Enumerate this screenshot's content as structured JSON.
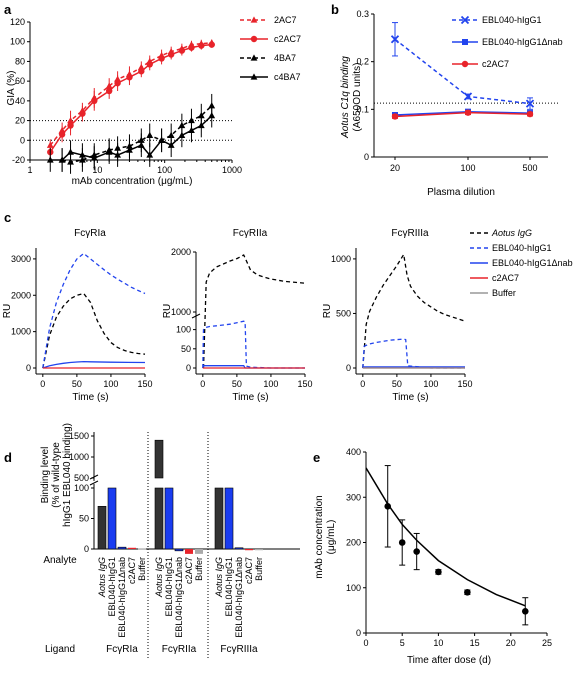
{
  "chart_data": [
    {
      "panel": "a",
      "type": "line",
      "xlabel": "mAb concentration (μg/mL)",
      "ylabel": "GIA (%)",
      "xscale": "log",
      "xlim": [
        1,
        1000
      ],
      "ylim": [
        -20,
        120
      ],
      "xticks": [
        "1",
        "10",
        "100",
        "1000"
      ],
      "yticks": [
        "-20",
        "0",
        "20",
        "40",
        "60",
        "80",
        "100",
        "120"
      ],
      "legend": "right",
      "reference_lines": [
        20,
        0
      ],
      "series": [
        {
          "name": "2AC7",
          "color": "#e8232a",
          "style": "dashed",
          "marker": "triangle",
          "x": [
            2,
            3,
            4,
            6,
            9,
            15,
            20,
            30,
            45,
            60,
            90,
            125,
            180,
            250,
            350,
            500
          ],
          "y": [
            -5,
            10,
            20,
            30,
            43,
            55,
            62,
            67,
            74,
            80,
            86,
            90,
            93,
            97,
            98,
            99
          ]
        },
        {
          "name": "c2AC7",
          "color": "#e8232a",
          "style": "solid",
          "marker": "circle",
          "x": [
            2,
            3,
            4,
            6,
            9,
            15,
            20,
            30,
            45,
            60,
            90,
            125,
            180,
            250,
            350,
            500
          ],
          "y": [
            -12,
            6,
            15,
            27,
            40,
            50,
            58,
            64,
            70,
            77,
            83,
            87,
            91,
            94,
            96,
            97
          ]
        },
        {
          "name": "4BA7",
          "color": "#000000",
          "style": "dashed",
          "marker": "triangle",
          "x": [
            3,
            4,
            6,
            9,
            15,
            20,
            30,
            45,
            60,
            90,
            125,
            180,
            250,
            350,
            500
          ],
          "y": [
            -20,
            -22,
            -20,
            -15,
            -10,
            -8,
            -6,
            0,
            5,
            0,
            5,
            15,
            20,
            25,
            35
          ]
        },
        {
          "name": "c4BA7",
          "color": "#000000",
          "style": "solid",
          "marker": "triangle",
          "x": [
            2,
            3,
            4,
            6,
            9,
            15,
            20,
            30,
            45,
            60,
            90,
            125,
            180,
            250,
            350,
            500
          ],
          "y": [
            -20,
            -20,
            -12,
            -15,
            -18,
            -12,
            -15,
            -10,
            -5,
            -15,
            0,
            -5,
            5,
            10,
            15,
            25
          ]
        }
      ]
    },
    {
      "panel": "b",
      "type": "line",
      "xlabel": "Plasma dilution",
      "ylabel": "Aotus C1q binding (A650OD units)",
      "categories": [
        "20",
        "100",
        "500"
      ],
      "ylim": [
        0,
        0.3
      ],
      "yticks": [
        "0",
        "0.1",
        "0.2",
        "0.3"
      ],
      "reference_lines": [
        0.113
      ],
      "legend": "top-right",
      "series": [
        {
          "name": "EBL040-hIgG1",
          "color": "#2244ee",
          "style": "dashed",
          "marker": "x",
          "values": [
            0.247,
            0.127,
            0.112
          ],
          "errors": [
            0.035,
            0.005,
            0.012
          ]
        },
        {
          "name": "EBL040-hIgG1Δnab",
          "color": "#2244ee",
          "style": "solid",
          "marker": "square",
          "values": [
            0.088,
            0.095,
            0.092
          ],
          "errors": [
            0.005,
            0.005,
            0.005
          ]
        },
        {
          "name": "c2AC7",
          "color": "#e8232a",
          "style": "solid",
          "marker": "circle",
          "values": [
            0.085,
            0.093,
            0.09
          ],
          "errors": [
            0.004,
            0.004,
            0.004
          ]
        }
      ]
    },
    {
      "panel": "c",
      "type": "line",
      "subplots": [
        {
          "title": "FcγRIa",
          "ylabel": "RU",
          "xlabel": "Time (s)",
          "xlim": [
            -10,
            150
          ],
          "ylim": [
            -100,
            3300
          ],
          "yticks": [
            "0",
            "1000",
            "2000",
            "3000"
          ],
          "xticks": [
            "0",
            "50",
            "100",
            "150"
          ],
          "series": [
            {
              "name": "Aotus IgG",
              "color": "#000000",
              "style": "dashed",
              "x": [
                0,
                10,
                20,
                30,
                40,
                50,
                60,
                70,
                80,
                90,
                100,
                110,
                120,
                130,
                140,
                150
              ],
              "y": [
                0,
                900,
                1400,
                1700,
                1900,
                2000,
                2050,
                1800,
                1300,
                950,
                700,
                560,
                480,
                430,
                400,
                380
              ]
            },
            {
              "name": "EBL040-hIgG1",
              "color": "#2244ee",
              "style": "dashed",
              "x": [
                0,
                10,
                20,
                30,
                40,
                50,
                60,
                70,
                80,
                90,
                100,
                110,
                120,
                130,
                140,
                150
              ],
              "y": [
                0,
                1100,
                1800,
                2300,
                2700,
                3000,
                3150,
                3000,
                2850,
                2700,
                2560,
                2440,
                2330,
                2220,
                2130,
                2050
              ]
            },
            {
              "name": "EBL040-hIgG1Δnab",
              "color": "#2244ee",
              "style": "solid",
              "x": [
                0,
                10,
                20,
                30,
                40,
                50,
                60,
                70,
                100,
                150
              ],
              "y": [
                0,
                60,
                100,
                130,
                150,
                165,
                175,
                170,
                160,
                150
              ]
            },
            {
              "name": "c2AC7",
              "color": "#e8232a",
              "style": "solid",
              "x": [
                0,
                150
              ],
              "y": [
                0,
                0
              ]
            }
          ]
        },
        {
          "title": "FcγRIIa",
          "ylabel": "RU",
          "xlabel": "Time (s)",
          "xlim": [
            -10,
            150
          ],
          "yticks": [
            "0",
            "50",
            "100",
            "1000",
            "2000"
          ],
          "xticks": [
            "0",
            "50",
            "100",
            "150"
          ],
          "series": [
            {
              "name": "Aotus IgG",
              "color": "#000000",
              "style": "dashed",
              "x": [
                1,
                5,
                10,
                20,
                30,
                40,
                50,
                60,
                62,
                70,
                80,
                90,
                100,
                110,
                120,
                130,
                140,
                150
              ],
              "y": [
                0,
                1500,
                1650,
                1750,
                1800,
                1850,
                1890,
                1950,
                1900,
                1700,
                1620,
                1580,
                1550,
                1530,
                1510,
                1500,
                1490,
                1480
              ]
            },
            {
              "name": "EBL040-hIgG1",
              "color": "#2244ee",
              "style": "dashed",
              "x": [
                0,
                1,
                3,
                10,
                20,
                30,
                40,
                50,
                60,
                62,
                64,
                70,
                100,
                150
              ],
              "y": [
                0,
                100,
                105,
                108,
                110,
                112,
                114,
                118,
                122,
                120,
                5,
                2,
                0,
                0
              ]
            },
            {
              "name": "EBL040-hIgG1Δnab",
              "color": "#2244ee",
              "style": "solid",
              "x": [
                0,
                1,
                60,
                62,
                150
              ],
              "y": [
                0,
                6,
                6,
                0,
                0
              ]
            },
            {
              "name": "c2AC7",
              "color": "#e8232a",
              "style": "solid",
              "x": [
                0,
                150
              ],
              "y": [
                0,
                0
              ]
            }
          ]
        },
        {
          "title": "FcγRIIIa",
          "ylabel": "RU",
          "xlabel": "Time (s)",
          "xlim": [
            -10,
            150
          ],
          "ylim": [
            -100,
            1100
          ],
          "yticks": [
            "0",
            "500",
            "1000"
          ],
          "xticks": [
            "0",
            "50",
            "100",
            "150"
          ],
          "series": [
            {
              "name": "Aotus IgG",
              "color": "#000000",
              "style": "dashed",
              "x": [
                0,
                5,
                10,
                20,
                30,
                40,
                50,
                60,
                65,
                70,
                80,
                90,
                100,
                110,
                120,
                130,
                140,
                150
              ],
              "y": [
                0,
                400,
                520,
                650,
                760,
                850,
                940,
                1040,
                850,
                750,
                660,
                600,
                560,
                520,
                490,
                470,
                450,
                430
              ]
            },
            {
              "name": "EBL040-hIgG1",
              "color": "#2244ee",
              "style": "dashed",
              "x": [
                0,
                2,
                10,
                20,
                30,
                40,
                50,
                60,
                63,
                66,
                100,
                150
              ],
              "y": [
                0,
                200,
                220,
                235,
                245,
                255,
                260,
                265,
                260,
                20,
                0,
                0
              ]
            },
            {
              "name": "EBL040-hIgG1Δnab",
              "color": "#2244ee",
              "style": "solid",
              "x": [
                0,
                150
              ],
              "y": [
                10,
                10
              ]
            },
            {
              "name": "c2AC7",
              "color": "#e8232a",
              "style": "solid",
              "x": [
                0,
                150
              ],
              "y": [
                0,
                0
              ]
            },
            {
              "name": "Buffer",
              "color": "#999999",
              "style": "solid",
              "x": [
                0,
                150
              ],
              "y": [
                0,
                0
              ]
            }
          ]
        }
      ],
      "legend_entries": [
        "Aotus IgG",
        "EBL040-hIgG1",
        "EBL040-hIgG1Δnab",
        "c2AC7",
        "Buffer"
      ]
    },
    {
      "panel": "d",
      "type": "bar",
      "ylabel": "Binding level (% of wild-type hIgG1 EBL040 binding)",
      "yticks": [
        "0",
        "50",
        "100",
        "500",
        "1000",
        "1500"
      ],
      "row_labels": [
        "Analyte",
        "Ligand"
      ],
      "analytes": [
        "Aotus IgG",
        "EBL040-hIgG1",
        "EBL040-hIgG1Δnab",
        "c2AC7",
        "Buffer"
      ],
      "groups": [
        {
          "ligand": "FcγRIa",
          "values": [
            70,
            100,
            3,
            2,
            1
          ]
        },
        {
          "ligand": "FcγRIIa",
          "values": [
            1400,
            100,
            -3,
            -8,
            -8
          ]
        },
        {
          "ligand": "FcγRIIIa",
          "values": [
            350,
            100,
            2,
            -2,
            -2
          ]
        }
      ],
      "colors": [
        "#333333",
        "#1a3cf0",
        "#1a3cf0",
        "#e8232a",
        "#aaaaaa"
      ]
    },
    {
      "panel": "e",
      "type": "scatter",
      "xlabel": "Time after dose (d)",
      "ylabel": "mAb concentration (μg/mL)",
      "xlim": [
        0,
        25
      ],
      "ylim": [
        0,
        400
      ],
      "xticks": [
        "0",
        "5",
        "10",
        "15",
        "20",
        "25"
      ],
      "yticks": [
        "0",
        "100",
        "200",
        "300",
        "400"
      ],
      "points": {
        "x": [
          3,
          5,
          7,
          10,
          14,
          22
        ],
        "y": [
          280,
          200,
          180,
          135,
          90,
          48
        ],
        "errors": [
          90,
          50,
          40,
          5,
          5,
          30
        ]
      },
      "fit": {
        "x": [
          0,
          3,
          5,
          7,
          10,
          14,
          18,
          22
        ],
        "y": [
          365,
          285,
          240,
          205,
          160,
          118,
          85,
          60
        ]
      }
    }
  ],
  "panels": {
    "a": "a",
    "b": "b",
    "c": "c",
    "d": "d",
    "e": "e"
  },
  "a_legend": [
    "2AC7",
    "c2AC7",
    "4BA7",
    "c4BA7"
  ],
  "b_legend": [
    "EBL040-hIgG1",
    "EBL040-hIgG1Δnab",
    "c2AC7"
  ],
  "c_titles": [
    "FcγRIa",
    "FcγRIIa",
    "FcγRIIIa"
  ],
  "c_legend": [
    "Aotus IgG",
    "EBL040-hIgG1",
    "EBL040-hIgG1Δnab",
    "c2AC7",
    "Buffer"
  ],
  "d_row_labels": [
    "Analyte",
    "Ligand"
  ],
  "d_ligands": [
    "FcγRIa",
    "FcγRIIa",
    "FcγRIIIa"
  ],
  "a_labels": {
    "x": "mAb concentration (μg/mL)",
    "y": "GIA (%)"
  },
  "b_labels": {
    "x": "Plasma dilution",
    "y1": "Aotus C1q binding",
    "y2": "(A650OD units)"
  },
  "c_labels": {
    "x": "Time (s)",
    "y": "RU"
  },
  "d_labels": {
    "y1": "Binding level",
    "y2": "(% of wild-type",
    "y3": "hIgG1 EBL040 binding)"
  },
  "e_labels": {
    "x": "Time after dose (d)",
    "y1": "mAb concentration",
    "y2": "(μg/mL)"
  }
}
